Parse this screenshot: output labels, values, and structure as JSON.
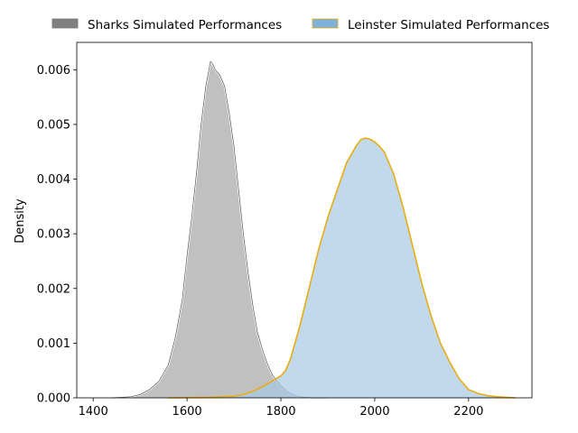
{
  "chart_data": {
    "type": "area",
    "xlabel": "",
    "ylabel": "Density",
    "xlim": [
      1365,
      2335
    ],
    "ylim": [
      0,
      0.0065
    ],
    "x_ticks": [
      1400,
      1600,
      1800,
      2000,
      2200
    ],
    "y_ticks": [
      0.0,
      0.001,
      0.002,
      0.003,
      0.004,
      0.005,
      0.006
    ],
    "y_tick_labels": [
      "0.000",
      "0.001",
      "0.002",
      "0.003",
      "0.004",
      "0.005",
      "0.006"
    ],
    "legend_placement": "top-center, above plot",
    "grid": false,
    "series": [
      {
        "name": "Sharks Simulated Performances",
        "fill": "#999999",
        "legend_color": "#808080",
        "edge": "#555555",
        "x": [
          1440,
          1480,
          1500,
          1520,
          1540,
          1560,
          1575,
          1590,
          1600,
          1610,
          1620,
          1630,
          1640,
          1650,
          1655,
          1660,
          1670,
          1680,
          1690,
          1700,
          1710,
          1720,
          1730,
          1740,
          1750,
          1760,
          1770,
          1780,
          1790,
          1800,
          1810,
          1820,
          1830,
          1840,
          1850,
          1870,
          1900
        ],
        "y": [
          0.0,
          2e-05,
          6e-05,
          0.00015,
          0.0003,
          0.0006,
          0.0011,
          0.0018,
          0.0026,
          0.0033,
          0.0041,
          0.005,
          0.0057,
          0.00615,
          0.0061,
          0.006,
          0.0059,
          0.0057,
          0.0052,
          0.0046,
          0.0038,
          0.003,
          0.0023,
          0.0017,
          0.0012,
          0.0009,
          0.00065,
          0.00045,
          0.00032,
          0.00022,
          0.00014,
          8e-05,
          4e-05,
          2e-05,
          1e-05,
          0.0,
          0.0
        ]
      },
      {
        "name": "Leinster Simulated Performances",
        "fill": "#a6c8e5",
        "legend_color": "#7fb0d8",
        "edge": "#e8ae10",
        "x": [
          1560,
          1650,
          1700,
          1720,
          1740,
          1760,
          1780,
          1800,
          1810,
          1820,
          1830,
          1840,
          1860,
          1880,
          1900,
          1920,
          1940,
          1960,
          1970,
          1980,
          1990,
          2000,
          2010,
          2020,
          2040,
          2060,
          2080,
          2100,
          2120,
          2140,
          2160,
          2180,
          2200,
          2220,
          2240,
          2260,
          2280,
          2300
        ],
        "y": [
          0.0,
          1e-05,
          3e-05,
          6e-05,
          0.00012,
          0.0002,
          0.0003,
          0.0004,
          0.0005,
          0.0007,
          0.001,
          0.0013,
          0.002,
          0.0027,
          0.0033,
          0.0038,
          0.0043,
          0.0046,
          0.00472,
          0.00475,
          0.00473,
          0.00468,
          0.0046,
          0.0045,
          0.0041,
          0.0035,
          0.0028,
          0.0021,
          0.0015,
          0.001,
          0.00065,
          0.00035,
          0.00015,
          8e-05,
          4e-05,
          2e-05,
          1e-05,
          0.0
        ]
      }
    ]
  }
}
